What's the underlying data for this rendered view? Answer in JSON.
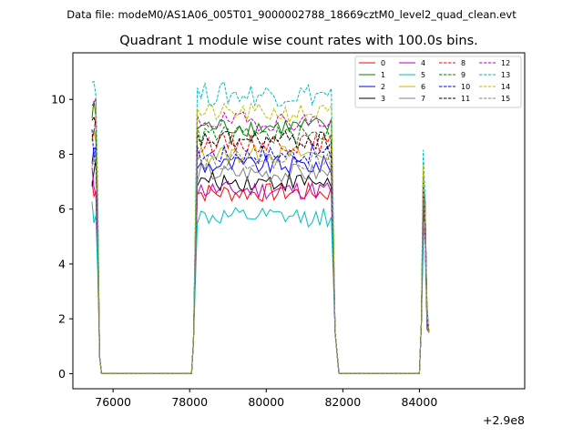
{
  "header": {
    "suptitle": "Data file: modeM0/AS1A06_005T01_9000002788_18669cztM0_level2_quad_clean.evt",
    "title": "Quadrant 1 module wise count rates with 100.0s bins."
  },
  "axes": {
    "offset_label": "+2.9e8"
  },
  "chart_data": {
    "type": "line",
    "title": "Quadrant 1 module wise count rates with 100.0s bins.",
    "xlabel": "",
    "ylabel": "",
    "x_offset": 290000000,
    "xlim": [
      74950,
      86750
    ],
    "ylim": [
      -0.55,
      11.7
    ],
    "xticks": [
      76000,
      78000,
      80000,
      82000,
      84000
    ],
    "xtick_labels": [
      "76000",
      "78000",
      "80000",
      "82000",
      "84000"
    ],
    "yticks": [
      0,
      2,
      4,
      6,
      8,
      10
    ],
    "ytick_labels": [
      "0",
      "2",
      "4",
      "6",
      "8",
      "10"
    ],
    "grid": false,
    "legend_position": "top-right",
    "legend_columns": 4,
    "segments": [
      {
        "x_start": 75450,
        "x_end": 75650,
        "step": 50,
        "ramp": "up-end"
      },
      {
        "x_start": 75700,
        "x_end": 78050,
        "step": 2350,
        "ramp": "zero"
      },
      {
        "x_start": 78100,
        "x_end": 81850,
        "step": 100,
        "ramp": "both"
      },
      {
        "x_start": 81900,
        "x_end": 84000,
        "step": 2100,
        "ramp": "zero"
      },
      {
        "x_start": 84050,
        "x_end": 84250,
        "step": 50,
        "ramp": "peak"
      }
    ],
    "series": [
      {
        "name": "0",
        "color": "#ff0000",
        "dash": "solid",
        "level": 6.6
      },
      {
        "name": "1",
        "color": "#008000",
        "dash": "solid",
        "level": 9.0
      },
      {
        "name": "2",
        "color": "#0000ff",
        "dash": "solid",
        "level": 7.6
      },
      {
        "name": "3",
        "color": "#000000",
        "dash": "solid",
        "level": 7.0
      },
      {
        "name": "4",
        "color": "#bf00bf",
        "dash": "solid",
        "level": 6.7
      },
      {
        "name": "5",
        "color": "#00bfbf",
        "dash": "solid",
        "level": 5.7
      },
      {
        "name": "6",
        "color": "#bfbf00",
        "dash": "solid",
        "level": 8.0
      },
      {
        "name": "7",
        "color": "#808080",
        "dash": "solid",
        "level": 7.3
      },
      {
        "name": "8",
        "color": "#ff0000",
        "dash": "dashed",
        "level": 8.4
      },
      {
        "name": "9",
        "color": "#008000",
        "dash": "dashed",
        "level": 8.7
      },
      {
        "name": "10",
        "color": "#0000ff",
        "dash": "dashed",
        "level": 8.0
      },
      {
        "name": "11",
        "color": "#000000",
        "dash": "dashed",
        "level": 8.5
      },
      {
        "name": "12",
        "color": "#bf00bf",
        "dash": "dashed",
        "level": 9.2
      },
      {
        "name": "13",
        "color": "#00bfbf",
        "dash": "dashed",
        "level": 10.2
      },
      {
        "name": "14",
        "color": "#bfbf00",
        "dash": "dashed",
        "level": 9.5
      },
      {
        "name": "15",
        "color": "#808080",
        "dash": "dashed",
        "level": 7.8
      }
    ]
  }
}
